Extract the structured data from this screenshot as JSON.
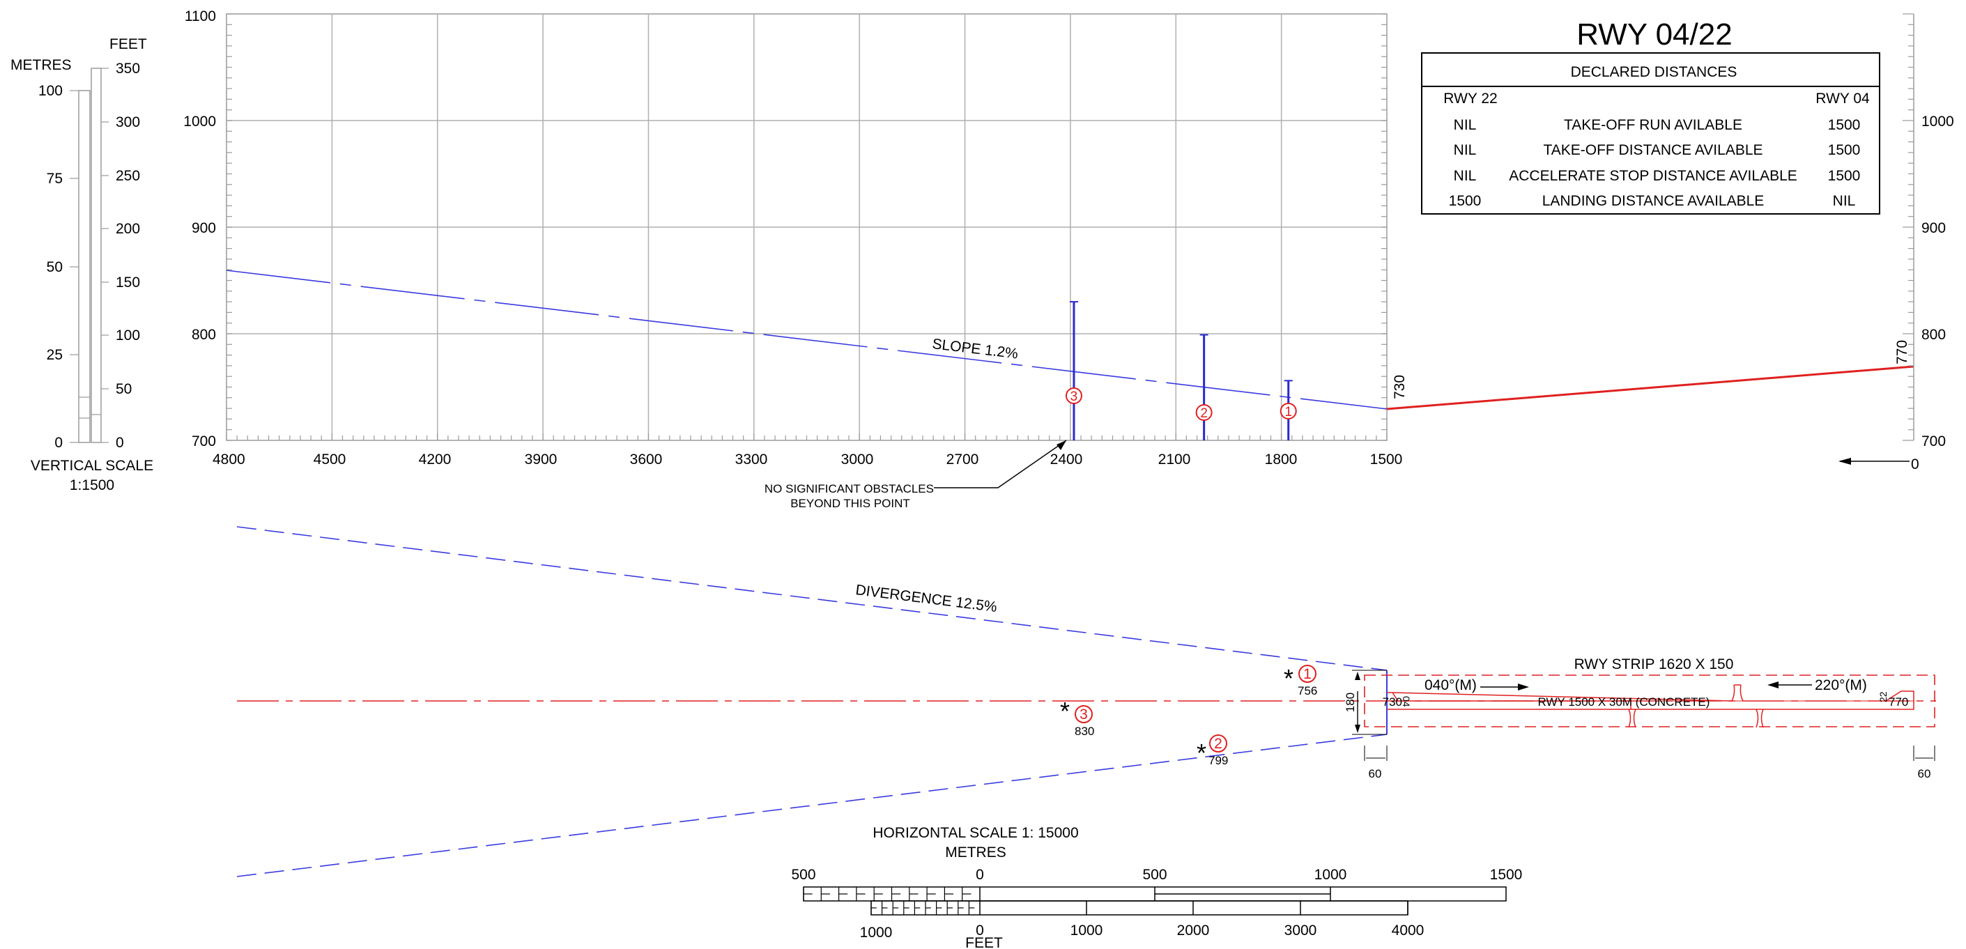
{
  "title": "RWY 04/22",
  "declared_distances": {
    "heading": "DECLARED DISTANCES",
    "col_left": "RWY 22",
    "col_right": "RWY 04",
    "rows": [
      {
        "left": "NIL",
        "label": "TAKE-OFF RUN AVILABLE",
        "right": "1500"
      },
      {
        "left": "NIL",
        "label": "TAKE-OFF DISTANCE AVILABLE",
        "right": "1500"
      },
      {
        "left": "NIL",
        "label": "ACCELERATE STOP DISTANCE AVILABLE",
        "right": "1500"
      },
      {
        "left": "1500",
        "label": "LANDING DISTANCE AVAILABLE",
        "right": "NIL"
      }
    ]
  },
  "vertical_scale": {
    "metres_label": "METRES",
    "feet_label": "FEET",
    "metres_ticks": [
      "100",
      "75",
      "50",
      "25",
      "0"
    ],
    "feet_ticks": [
      "350",
      "300",
      "250",
      "200",
      "150",
      "100",
      "50",
      "0"
    ],
    "caption_line1": "VERTICAL SCALE",
    "caption_line2": "1:1500"
  },
  "profile": {
    "y_labels_left": [
      "1100",
      "1000",
      "900",
      "800",
      "700"
    ],
    "y_labels_right": [
      "1000",
      "900",
      "800",
      "700"
    ],
    "x_labels": [
      "4800",
      "4500",
      "4200",
      "3900",
      "3600",
      "3300",
      "3000",
      "2700",
      "2400",
      "2100",
      "1800",
      "1500"
    ],
    "x_zero_label": "0",
    "slope_label": "SLOPE 1.2%",
    "elev_left": "730",
    "elev_right": "770",
    "obstacles": [
      {
        "id": "1",
        "distance": 1780,
        "elevation": 756
      },
      {
        "id": "2",
        "distance": 2020,
        "elevation": 799
      },
      {
        "id": "3",
        "distance": 2390,
        "elevation": 830
      }
    ],
    "note_line1": "NO SIGNIFICANT OBSTACLES",
    "note_line2": "BEYOND THIS POINT"
  },
  "plan": {
    "divergence_label": "DIVERGENCE 12.5%",
    "strip_label": "RWY STRIP 1620 X 150",
    "runway_label": "RWY 1500 X 30M (CONCRETE)",
    "bearing_left": "040°(M)",
    "bearing_right": "220°(M)",
    "width_label": "180",
    "elev_left": "730",
    "elev_right": "770",
    "rwy_num_left": "04",
    "rwy_num_right": "22",
    "strip_end_left": "60",
    "strip_end_right": "60",
    "obstacles": [
      {
        "id": "1",
        "elev": "756"
      },
      {
        "id": "2",
        "elev": "799"
      },
      {
        "id": "3",
        "elev": "830"
      }
    ]
  },
  "horizontal_scale": {
    "caption": "HORIZONTAL SCALE 1: 15000",
    "metres_label": "METRES",
    "feet_label": "FEET",
    "metres_ticks": [
      "500",
      "0",
      "500",
      "1000",
      "1500"
    ],
    "feet_ticks": [
      "1000",
      "0",
      "1000",
      "2000",
      "3000",
      "4000"
    ]
  }
}
